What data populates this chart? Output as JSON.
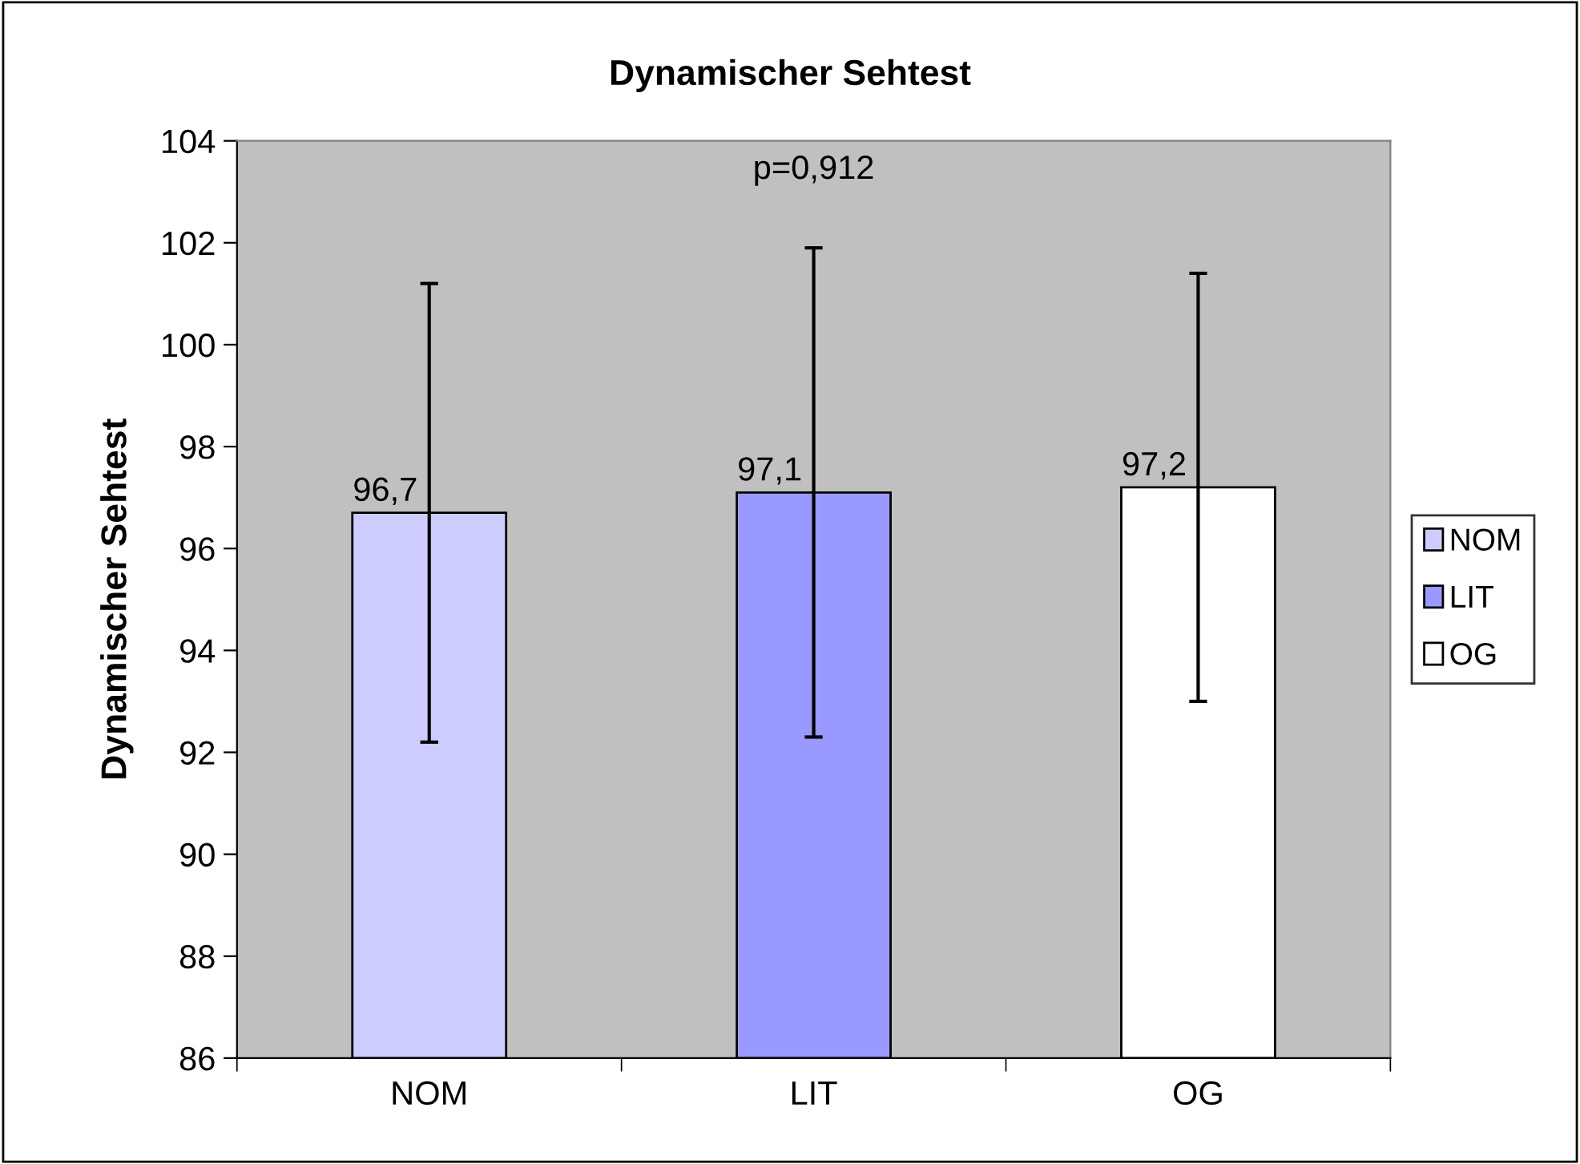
{
  "chart_data": {
    "type": "bar",
    "title": "Dynamischer Sehtest",
    "ylabel": "Dynamischer Sehtest",
    "categories": [
      "NOM",
      "LIT",
      "OG"
    ],
    "series": [
      {
        "name": "NOM",
        "color": "#ccccff",
        "values": [
          96.7,
          null,
          null
        ],
        "errors": [
          4.5,
          null,
          null
        ],
        "value_labels": [
          "96,7",
          null,
          null
        ]
      },
      {
        "name": "LIT",
        "color": "#9999ff",
        "values": [
          null,
          97.1,
          null
        ],
        "errors": [
          null,
          4.8,
          null
        ],
        "value_labels": [
          null,
          "97,1",
          null
        ]
      },
      {
        "name": "OG",
        "color": "#ffffff",
        "values": [
          null,
          null,
          97.2
        ],
        "errors": [
          null,
          null,
          4.2
        ],
        "value_labels": [
          null,
          null,
          "97,2"
        ]
      }
    ],
    "annotations": [
      "p=0,912"
    ],
    "ylim": [
      86,
      104
    ],
    "yticks": [
      86,
      88,
      90,
      92,
      94,
      96,
      98,
      100,
      102,
      104
    ],
    "grid": false,
    "legend": "right"
  }
}
